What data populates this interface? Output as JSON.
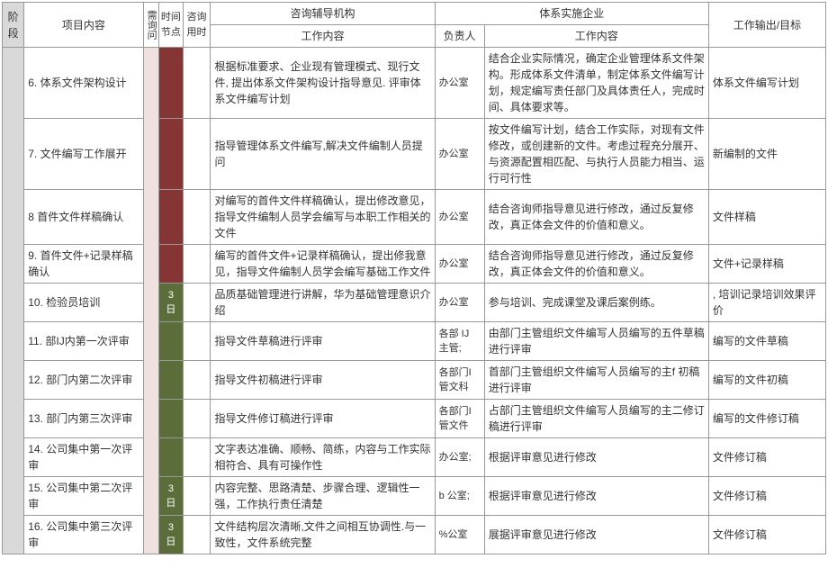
{
  "headers": {
    "stage": "阶段",
    "item": "项目内容",
    "needInquiry": "需询问",
    "timeNode": "时间节点",
    "consultTime": "咨询用时",
    "consultOrg": "咨询辅导机构",
    "consultWork": "工作内容",
    "enterprise": "体系实施企业",
    "owner": "负责人",
    "entWork": "工作内容",
    "output": "工作输出/目标"
  },
  "rows": [
    {
      "item": "6. 体系文件架构设计",
      "timeText": "",
      "tnClass": "col-time-node-red",
      "consultWork": "根据标准要求、企业现有管理模式、现行文件,\n提出体系文件架构设计指导意见. 评审体系文件编写计划",
      "owner": "办公室",
      "entWork": "结合企业实际情况，确定企业管理体系文件架构。形成体系文件清单，制定体系文件编写计划，规定编写责任部门及具体责任人，完成时间、具体要求等。",
      "output": "体系文件编写计划"
    },
    {
      "item": "7. 文件编写工作展开",
      "timeText": "",
      "tnClass": "col-time-node-red",
      "consultWork": "指导管理体系文件编写,解决文件编制人员提问",
      "owner": "办公室",
      "entWork": "按文件编写计划，结合工作实际，对现有文件修改，或创建新的文件。考虑过程充分展开、与资源配置相匹配、与执行人员能力相当、运行可行性",
      "output": "新编制的文件"
    },
    {
      "item": "8 首件文件样稿确认",
      "timeText": "",
      "tnClass": "col-time-node-red",
      "consultWork": "对编写的首件文件样稿确认，提出修改意见，指导文件编制人员学会编写与本职工作相关的文件",
      "owner": "办公室",
      "entWork": "结合咨询师指导意见进行修改，通过反复修改，真正体会文件的价值和意义。",
      "output": "文件样稿"
    },
    {
      "item": "9. 首件文件+记录样稿确认",
      "timeText": "",
      "tnClass": "col-time-node-red",
      "consultWork": "编写的首件文件+记录样稿确认，提出修我意见，指导文件编制人员学会编写基础工作文件",
      "owner": "办公室",
      "entWork": "结合咨询师指导意见进行修改，通过反复修改，真正体会文件的价值和意义。",
      "output": "文件+记录样稿"
    },
    {
      "item": "10. 检验员培训",
      "timeText": "3 日",
      "tnClass": "col-time-node-green",
      "consultWork": "品质基础管理进行讲解，华为基础管理意识介绍",
      "owner": "办公室",
      "entWork": "参与培训、完成课堂及课后案例练。",
      "output": ", 培训记录培训效果评价"
    },
    {
      "item": "11. 部IJ内第一次评审",
      "timeText": "",
      "tnClass": "col-time-node-green",
      "consultWork": "指导文件草稿进行评审",
      "owner": "各部 IJ 主管;",
      "entWork": "由部门主管组织文件编写人员编写的五件草稿进行评审",
      "output": "编写的文件草稿"
    },
    {
      "item": "12. 部门内第二次评审",
      "timeText": "",
      "tnClass": "col-time-node-green",
      "consultWork": "指导文件初稿进行评审",
      "owner": "各部门I管文科",
      "entWork": "首部门主管组织文件编写人员编写的主f 初稿进行评审",
      "output": "编写的文件初稿"
    },
    {
      "item": "13. 部门内第三次评审",
      "timeText": "",
      "tnClass": "col-time-node-green",
      "consultWork": "指导文件修订稿进行评审",
      "owner": "各部门I管文件",
      "entWork": "占部门主管组织文件编写人员编写的主二修订稿进行评审",
      "output": "编写的文件修订稿"
    },
    {
      "item": "14. 公司集中第一次评审",
      "timeText": "",
      "tnClass": "col-time-node-green",
      "consultWork": "文字表达准确、顺畅、简练，内容与工作实际相符合、具有可操作性",
      "owner": "办公室;",
      "entWork": "根据评审意见进行修改",
      "output": "文件修订稿"
    },
    {
      "item": "15. 公司集中第二次评审",
      "timeText": "3 日",
      "tnClass": "col-time-node-green",
      "consultWork": "内容完整、思路清楚、步骤合理、逻辑性一强，工作执行责任清楚",
      "owner": "b 公室;",
      "entWork": "根据评审意见进行修改",
      "output": "文件修订稿"
    },
    {
      "item": "16. 公司集中第三次评审",
      "timeText": "3 日",
      "tnClass": "col-time-node-green",
      "consultWork": "文件结构层次清晰,文件之间相互协调性.与一致性，文件系统完整",
      "owner": "%公室",
      "entWork": "展据评审意见进行修改",
      "output": "文件修订稿"
    }
  ],
  "colors": {
    "stageBg": "#d9d9d9",
    "pinkBg": "#f0e0e0",
    "redBg": "#843534",
    "greenBg": "#5b6e3a",
    "border": "#999999",
    "text": "#333333",
    "bg": "#ffffff"
  }
}
